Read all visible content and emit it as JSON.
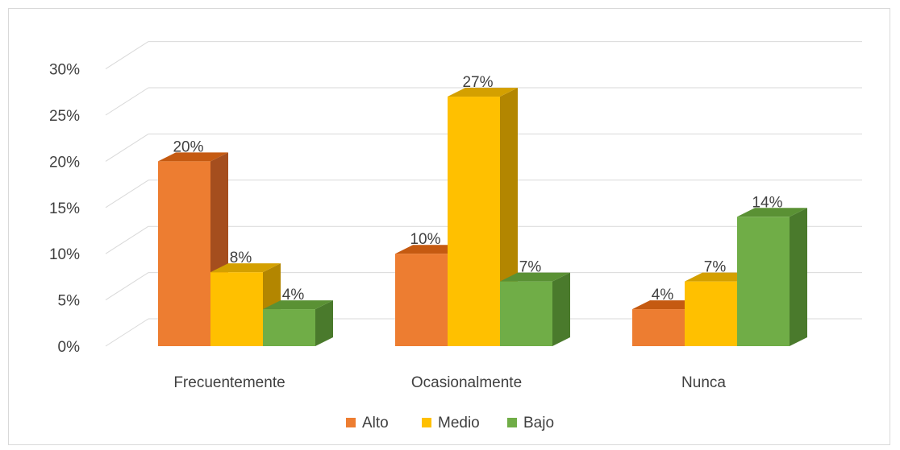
{
  "chart_data": {
    "type": "bar",
    "title": "",
    "xlabel": "",
    "ylabel": "",
    "ylim": [
      0,
      30
    ],
    "yticks": [
      "0%",
      "5%",
      "10%",
      "15%",
      "20%",
      "25%",
      "30%"
    ],
    "ytick_values": [
      0,
      5,
      10,
      15,
      20,
      25,
      30
    ],
    "grid": true,
    "legend_position": "bottom",
    "categories": [
      "Frecuentemente",
      "Ocasionalmente",
      "Nunca"
    ],
    "series": [
      {
        "name": "Alto",
        "values": [
          20,
          10,
          4
        ],
        "labels": [
          "20%",
          "10%",
          "4%"
        ],
        "color": "#ED7D31",
        "side_color": "#A54E1E",
        "top_color": "#C55A11"
      },
      {
        "name": "Medio",
        "values": [
          8,
          27,
          7
        ],
        "labels": [
          "8%",
          "27%",
          "7%"
        ],
        "color": "#FFC000",
        "side_color": "#B38600",
        "top_color": "#D4A000"
      },
      {
        "name": "Bajo",
        "values": [
          4,
          7,
          14
        ],
        "labels": [
          "4%",
          "7%",
          "14%"
        ],
        "color": "#70AD47",
        "side_color": "#4A7A2C",
        "top_color": "#5A9134"
      }
    ],
    "gridline_color": "#d9d9d9"
  }
}
